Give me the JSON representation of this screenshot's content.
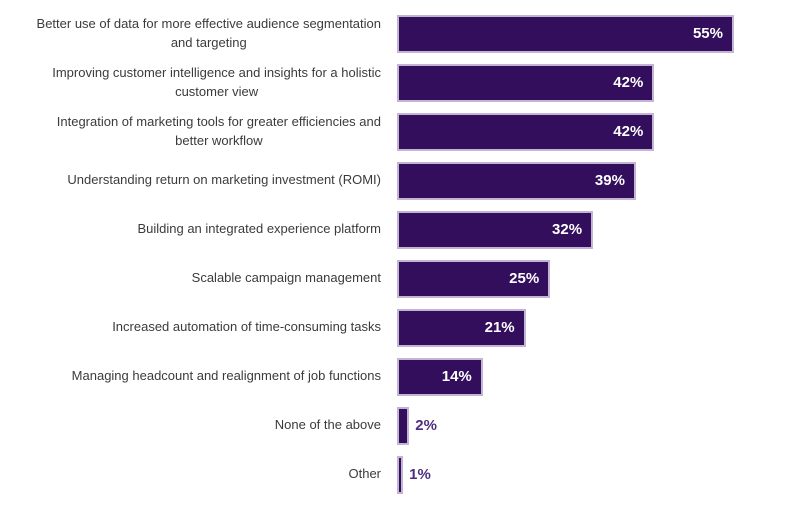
{
  "chart_data": {
    "type": "bar",
    "orientation": "horizontal",
    "title": "",
    "xlabel": "",
    "ylabel": "",
    "xlim": [
      0,
      66.6
    ],
    "grid": false,
    "legend": false,
    "categories": [
      "Better use of data for more effective audience segmentation\nand targeting",
      "Improving customer intelligence and insights for a holistic\ncustomer view",
      "Integration of marketing tools for greater efficiencies and\nbetter workflow",
      "Understanding return on marketing investment (ROMI)",
      "Building an integrated experience platform",
      "Scalable campaign management",
      "Increased automation of time-consuming tasks",
      "Managing headcount and realignment of job functions",
      "None of the above",
      "Other"
    ],
    "values": [
      55,
      42,
      42,
      39,
      32,
      25,
      21,
      14,
      2,
      1
    ],
    "value_labels": [
      "55%",
      "42%",
      "42%",
      "39%",
      "32%",
      "25%",
      "21%",
      "14%",
      "2%",
      "1%"
    ],
    "value_label_placement": [
      "inside",
      "inside",
      "inside",
      "inside",
      "inside",
      "inside",
      "inside",
      "inside",
      "outside",
      "outside"
    ],
    "colors": {
      "background": "#ffffff",
      "bar_fill": "#330e5c",
      "bar_border": "#c3b4d3",
      "category_label": "#3b3b3b",
      "value_inside": "#ffffff",
      "value_outside": "#4f2d7f"
    }
  }
}
